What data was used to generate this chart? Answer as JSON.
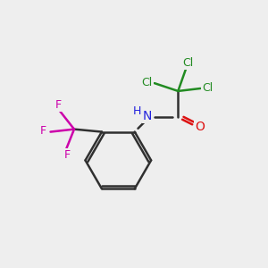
{
  "background_color": "#eeeeee",
  "colors": {
    "C": "#303030",
    "N": "#2222dd",
    "O": "#dd1111",
    "Cl": "#228B22",
    "F": "#cc00aa",
    "bond": "#303030"
  },
  "figsize": [
    3.0,
    3.0
  ],
  "dpi": 100,
  "xlim": [
    0,
    10
  ],
  "ylim": [
    0,
    10
  ]
}
